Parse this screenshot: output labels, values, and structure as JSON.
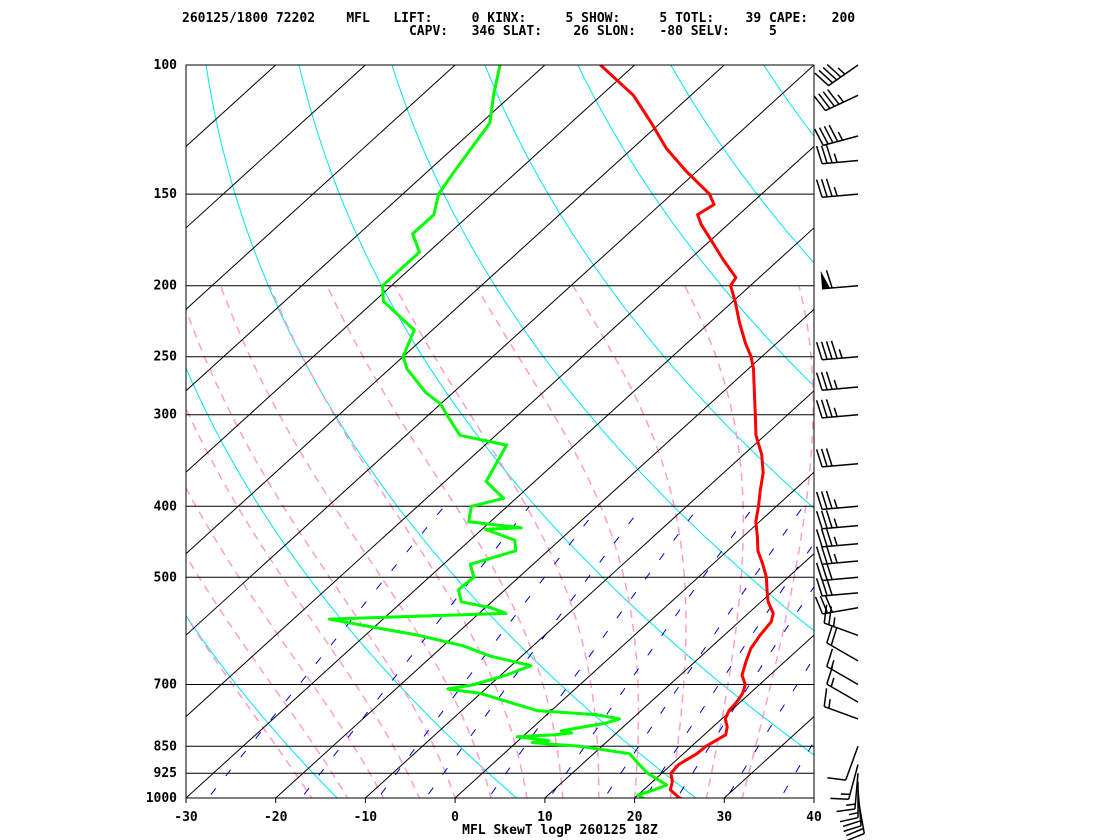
{
  "header": {
    "line1": "260125/1800 72202    MFL   LIFT:     0 KINX:     5 SHOW:     5 TOTL:    39 CAPE:   200",
    "line2": "                             CAPV:   346 SLAT:    26 SLON:   -80 SELV:     5"
  },
  "colors": {
    "temperature": "#ff0000",
    "dewpoint": "#00ff00",
    "isotherm": "#000000",
    "dry_adiabat": "#00e5ee",
    "moist_adiabat": "#ff9ec7",
    "mixing_ratio": "#0000cc",
    "isobar": "#000000"
  },
  "chart_data": {
    "type": "line",
    "subtype": "skew-t log-p",
    "title": "MFL SkewT logP 260125 18Z",
    "xlabel": "",
    "ylabel": "",
    "xlim": [
      -30,
      40
    ],
    "ylim": [
      1000,
      100
    ],
    "y_scale": "log",
    "x_ticks": [
      "-30",
      "-20",
      "-10",
      "0",
      "10",
      "20",
      "30",
      "40"
    ],
    "pressure_levels": [
      "100",
      "150",
      "200",
      "250",
      "300",
      "400",
      "500",
      "700",
      "850",
      "925",
      "1000"
    ],
    "series": [
      {
        "name": "",
        "kind": "temperature",
        "points": [
          [
            1010,
            26.5
          ],
          [
            1000,
            25.0
          ],
          [
            975,
            23.0
          ],
          [
            950,
            22.2
          ],
          [
            925,
            21.0
          ],
          [
            900,
            20.8
          ],
          [
            870,
            21.5
          ],
          [
            850,
            21.6
          ],
          [
            820,
            22.4
          ],
          [
            800,
            21.6
          ],
          [
            780,
            20.4
          ],
          [
            760,
            19.8
          ],
          [
            740,
            19.6
          ],
          [
            720,
            19.2
          ],
          [
            700,
            18.4
          ],
          [
            680,
            16.9
          ],
          [
            650,
            15.6
          ],
          [
            625,
            14.6
          ],
          [
            600,
            14.0
          ],
          [
            575,
            13.6
          ],
          [
            560,
            12.8
          ],
          [
            540,
            10.8
          ],
          [
            520,
            9.2
          ],
          [
            500,
            7.6
          ],
          [
            480,
            5.6
          ],
          [
            460,
            3.4
          ],
          [
            440,
            1.6
          ],
          [
            420,
            -0.4
          ],
          [
            400,
            -2.0
          ],
          [
            380,
            -3.8
          ],
          [
            360,
            -5.6
          ],
          [
            340,
            -8.0
          ],
          [
            320,
            -11.0
          ],
          [
            300,
            -13.6
          ],
          [
            280,
            -16.4
          ],
          [
            260,
            -19.4
          ],
          [
            250,
            -21.2
          ],
          [
            240,
            -23.4
          ],
          [
            225,
            -26.6
          ],
          [
            210,
            -29.8
          ],
          [
            200,
            -32.2
          ],
          [
            195,
            -32.6
          ],
          [
            185,
            -36.0
          ],
          [
            175,
            -39.4
          ],
          [
            165,
            -43.0
          ],
          [
            160,
            -44.6
          ],
          [
            155,
            -44.0
          ],
          [
            150,
            -45.8
          ],
          [
            140,
            -51.0
          ],
          [
            130,
            -56.2
          ],
          [
            120,
            -61.0
          ],
          [
            110,
            -66.4
          ],
          [
            100,
            -73.8
          ]
        ]
      },
      {
        "name": "",
        "kind": "dewpoint",
        "points": [
          [
            1000,
            21.0
          ],
          [
            990,
            20.0
          ],
          [
            975,
            21.2
          ],
          [
            960,
            22.0
          ],
          [
            925,
            18.4
          ],
          [
            900,
            16.4
          ],
          [
            870,
            14.0
          ],
          [
            850,
            7.6
          ],
          [
            845,
            4.4
          ],
          [
            840,
            1.8
          ],
          [
            835,
            3.4
          ],
          [
            825,
            -0.6
          ],
          [
            820,
            3.4
          ],
          [
            815,
            5.0
          ],
          [
            810,
            3.6
          ],
          [
            790,
            7.6
          ],
          [
            780,
            8.6
          ],
          [
            770,
            5.6
          ],
          [
            760,
            -1.6
          ],
          [
            720,
            -10.0
          ],
          [
            710,
            -14.2
          ],
          [
            700,
            -11.8
          ],
          [
            680,
            -9.4
          ],
          [
            660,
            -7.8
          ],
          [
            640,
            -13.6
          ],
          [
            620,
            -17.8
          ],
          [
            600,
            -24.0
          ],
          [
            580,
            -32.0
          ],
          [
            570,
            -36.0
          ],
          [
            560,
            -17.0
          ],
          [
            550,
            -19.4
          ],
          [
            540,
            -23.4
          ],
          [
            520,
            -25.2
          ],
          [
            500,
            -25.0
          ],
          [
            480,
            -27.0
          ],
          [
            460,
            -23.6
          ],
          [
            445,
            -25.0
          ],
          [
            430,
            -29.6
          ],
          [
            428,
            -25.8
          ],
          [
            420,
            -32.4
          ],
          [
            400,
            -34.0
          ],
          [
            390,
            -31.4
          ],
          [
            370,
            -35.4
          ],
          [
            330,
            -37.6
          ],
          [
            320,
            -44.0
          ],
          [
            300,
            -48.0
          ],
          [
            290,
            -50.0
          ],
          [
            280,
            -53.0
          ],
          [
            260,
            -58.0
          ],
          [
            250,
            -60.0
          ],
          [
            230,
            -62.0
          ],
          [
            210,
            -69.0
          ],
          [
            200,
            -71.0
          ],
          [
            180,
            -71.0
          ],
          [
            170,
            -74.0
          ],
          [
            160,
            -74.0
          ],
          [
            150,
            -76.0
          ],
          [
            140,
            -77.0
          ],
          [
            120,
            -79.0
          ],
          [
            110,
            -82.0
          ],
          [
            100,
            -85.0
          ]
        ]
      }
    ],
    "wind_barbs": [
      {
        "p": 1000,
        "direction": 170,
        "speed_kt": 20
      },
      {
        "p": 975,
        "direction": 175,
        "speed_kt": 20
      },
      {
        "p": 950,
        "direction": 180,
        "speed_kt": 15
      },
      {
        "p": 925,
        "direction": 185,
        "speed_kt": 15
      },
      {
        "p": 900,
        "direction": 195,
        "speed_kt": 15
      },
      {
        "p": 850,
        "direction": 200,
        "speed_kt": 10
      },
      {
        "p": 780,
        "direction": 290,
        "speed_kt": 15
      },
      {
        "p": 740,
        "direction": 300,
        "speed_kt": 15
      },
      {
        "p": 700,
        "direction": 300,
        "speed_kt": 15
      },
      {
        "p": 650,
        "direction": 300,
        "speed_kt": 20
      },
      {
        "p": 600,
        "direction": 290,
        "speed_kt": 25
      },
      {
        "p": 550,
        "direction": 260,
        "speed_kt": 30
      },
      {
        "p": 525,
        "direction": 265,
        "speed_kt": 30
      },
      {
        "p": 500,
        "direction": 265,
        "speed_kt": 30
      },
      {
        "p": 475,
        "direction": 265,
        "speed_kt": 35
      },
      {
        "p": 450,
        "direction": 265,
        "speed_kt": 35
      },
      {
        "p": 425,
        "direction": 265,
        "speed_kt": 35
      },
      {
        "p": 400,
        "direction": 265,
        "speed_kt": 35
      },
      {
        "p": 350,
        "direction": 265,
        "speed_kt": 30
      },
      {
        "p": 300,
        "direction": 265,
        "speed_kt": 35
      },
      {
        "p": 275,
        "direction": 265,
        "speed_kt": 35
      },
      {
        "p": 250,
        "direction": 265,
        "speed_kt": 45
      },
      {
        "p": 200,
        "direction": 265,
        "speed_kt": 60
      },
      {
        "p": 150,
        "direction": 265,
        "speed_kt": 35
      },
      {
        "p": 135,
        "direction": 265,
        "speed_kt": 35
      },
      {
        "p": 125,
        "direction": 255,
        "speed_kt": 45
      },
      {
        "p": 110,
        "direction": 245,
        "speed_kt": 45
      },
      {
        "p": 100,
        "direction": 235,
        "speed_kt": 45
      }
    ]
  }
}
